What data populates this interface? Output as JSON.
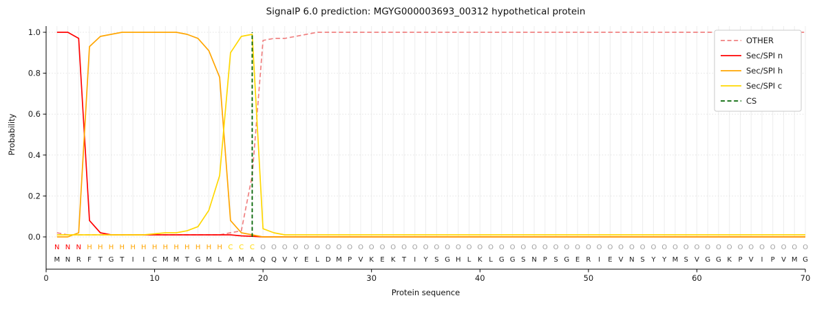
{
  "chart_data": {
    "type": "line",
    "title": "SignalP 6.0 prediction: MGYG000003693_00312 hypothetical protein",
    "xlabel": "Protein sequence",
    "ylabel": "Probability",
    "x_range": [
      0,
      70
    ],
    "y_range": [
      0.0,
      1.0
    ],
    "xticks": [
      0,
      10,
      20,
      30,
      40,
      50,
      60,
      70
    ],
    "yticks": [
      0.0,
      0.2,
      0.4,
      0.6,
      0.8,
      1.0
    ],
    "grid": true,
    "legend_position": "upper right",
    "sequence": "MNRFTGTIICMMTGMLAMAQQVYELDMPVKEKTIYSGHLKLGGSNPSGERIEVNSYYMSVGGKPVIPVMG",
    "regions": [
      {
        "label": "N",
        "start": 1,
        "end": 3
      },
      {
        "label": "H",
        "start": 4,
        "end": 16
      },
      {
        "label": "C",
        "start": 17,
        "end": 19
      },
      {
        "label": "O",
        "start": 20,
        "end": 70
      }
    ],
    "region_colors": {
      "N": "#ff0000",
      "H": "#ffa500",
      "C": "#ffd700",
      "O": "#9e9e9e"
    },
    "cs_position": 19,
    "series": [
      {
        "name": "OTHER",
        "color": "#f08080",
        "style": "dashed",
        "values": [
          0.02,
          0.01,
          0.01,
          0.01,
          0.01,
          0.01,
          0.01,
          0.01,
          0.01,
          0.01,
          0.01,
          0.01,
          0.01,
          0.01,
          0.01,
          0.01,
          0.02,
          0.03,
          0.3,
          0.96,
          0.97,
          0.97,
          0.98,
          0.99,
          1.0,
          1.0,
          1.0,
          1.0,
          1.0,
          1.0,
          1.0,
          1.0,
          1.0,
          1.0,
          1.0,
          1.0,
          1.0,
          1.0,
          1.0,
          1.0,
          1.0,
          1.0,
          1.0,
          1.0,
          1.0,
          1.0,
          1.0,
          1.0,
          1.0,
          1.0,
          1.0,
          1.0,
          1.0,
          1.0,
          1.0,
          1.0,
          1.0,
          1.0,
          1.0,
          1.0,
          1.0,
          1.0,
          1.0,
          1.0,
          1.0,
          1.0,
          1.0,
          1.0,
          1.0,
          1.0
        ]
      },
      {
        "name": "Sec/SPI n",
        "color": "#ff0000",
        "style": "solid",
        "values": [
          1.0,
          1.0,
          0.97,
          0.08,
          0.02,
          0.01,
          0.01,
          0.01,
          0.01,
          0.01,
          0.01,
          0.01,
          0.01,
          0.01,
          0.01,
          0.01,
          0.01,
          0.005,
          0.003,
          0.0,
          0.0,
          0.0,
          0.0,
          0.0,
          0.0,
          0.0,
          0.0,
          0.0,
          0.0,
          0.0,
          0.0,
          0.0,
          0.0,
          0.0,
          0.0,
          0.0,
          0.0,
          0.0,
          0.0,
          0.0,
          0.0,
          0.0,
          0.0,
          0.0,
          0.0,
          0.0,
          0.0,
          0.0,
          0.0,
          0.0,
          0.0,
          0.0,
          0.0,
          0.0,
          0.0,
          0.0,
          0.0,
          0.0,
          0.0,
          0.0,
          0.0,
          0.0,
          0.0,
          0.0,
          0.0,
          0.0,
          0.0,
          0.0,
          0.0,
          0.0
        ]
      },
      {
        "name": "Sec/SPI h",
        "color": "#ffa500",
        "style": "solid",
        "values": [
          0.0,
          0.0,
          0.02,
          0.93,
          0.98,
          0.99,
          1.0,
          1.0,
          1.0,
          1.0,
          1.0,
          1.0,
          0.99,
          0.97,
          0.91,
          0.78,
          0.08,
          0.02,
          0.01,
          0.0,
          0.0,
          0.0,
          0.0,
          0.0,
          0.0,
          0.0,
          0.0,
          0.0,
          0.0,
          0.0,
          0.0,
          0.0,
          0.0,
          0.0,
          0.0,
          0.0,
          0.0,
          0.0,
          0.0,
          0.0,
          0.0,
          0.0,
          0.0,
          0.0,
          0.0,
          0.0,
          0.0,
          0.0,
          0.0,
          0.0,
          0.0,
          0.0,
          0.0,
          0.0,
          0.0,
          0.0,
          0.0,
          0.0,
          0.0,
          0.0,
          0.0,
          0.0,
          0.0,
          0.0,
          0.0,
          0.0,
          0.0,
          0.0,
          0.0,
          0.0
        ]
      },
      {
        "name": "Sec/SPI c",
        "color": "#ffd700",
        "style": "solid",
        "values": [
          0.01,
          0.01,
          0.01,
          0.01,
          0.01,
          0.01,
          0.01,
          0.01,
          0.01,
          0.015,
          0.02,
          0.02,
          0.03,
          0.05,
          0.13,
          0.3,
          0.9,
          0.98,
          0.99,
          0.04,
          0.02,
          0.01,
          0.01,
          0.01,
          0.01,
          0.01,
          0.01,
          0.01,
          0.01,
          0.01,
          0.01,
          0.01,
          0.01,
          0.01,
          0.01,
          0.01,
          0.01,
          0.01,
          0.01,
          0.01,
          0.01,
          0.01,
          0.01,
          0.01,
          0.01,
          0.01,
          0.01,
          0.01,
          0.01,
          0.01,
          0.01,
          0.01,
          0.01,
          0.01,
          0.01,
          0.01,
          0.01,
          0.01,
          0.01,
          0.01,
          0.01,
          0.01,
          0.01,
          0.01,
          0.01,
          0.01,
          0.01,
          0.01,
          0.01,
          0.01
        ]
      },
      {
        "name": "CS",
        "color": "#006400",
        "style": "dashed-vertical",
        "position": 19
      }
    ]
  }
}
